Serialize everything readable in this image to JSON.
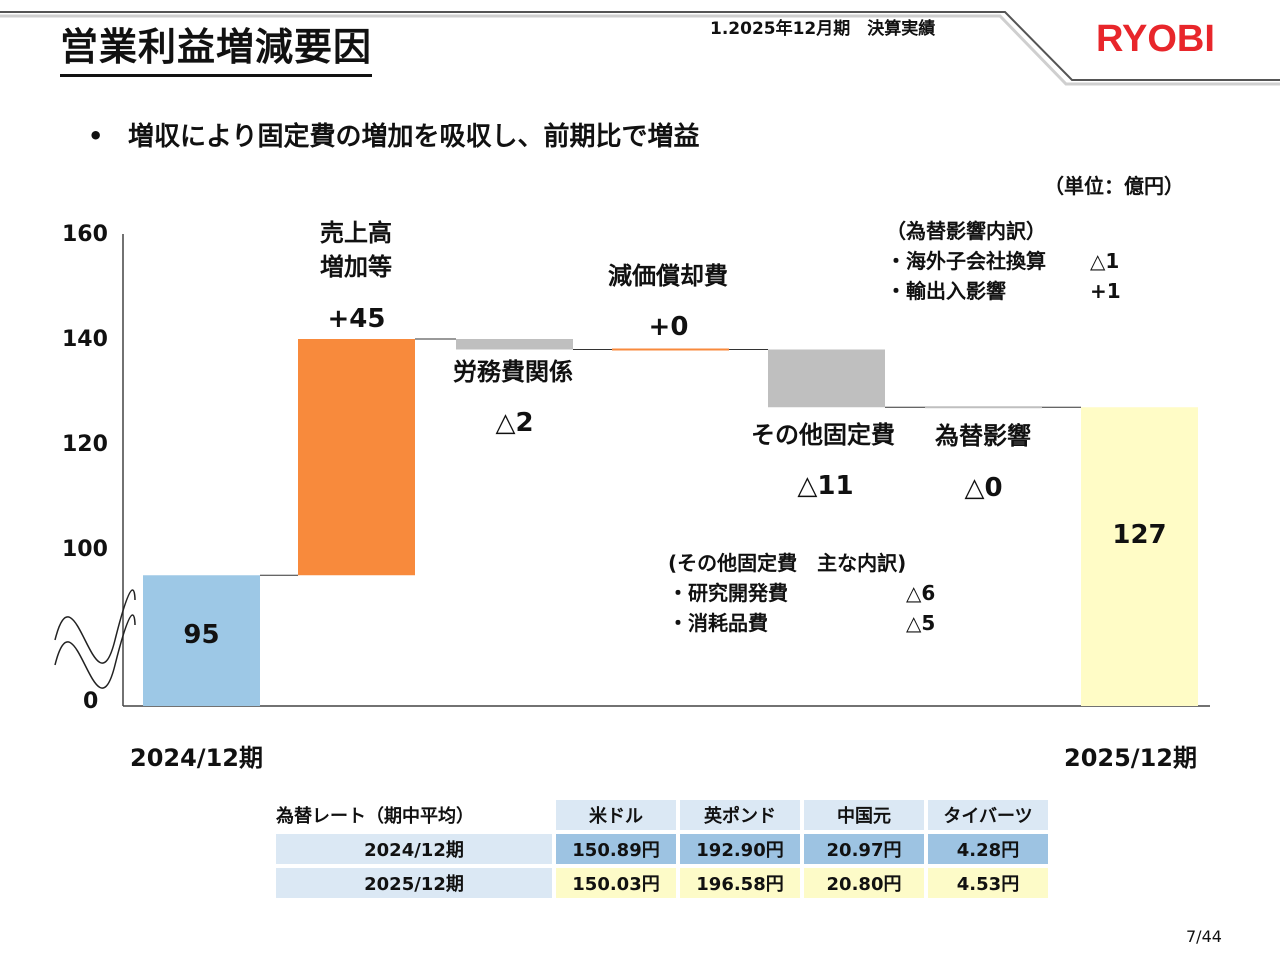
{
  "header": {
    "title": "営業利益増減要因",
    "section": "1.2025年12月期　決算実績",
    "logo": "RYOBI"
  },
  "bullet": "増収により固定費の増加を吸収し、前期比で増益",
  "unit": "（単位：億円）",
  "colors": {
    "start": "#9dc8e6",
    "increase": "#f88a3c",
    "decrease": "#bfbfbf",
    "end": "#fffcc6",
    "logo": "#e8262b"
  },
  "chart_data": {
    "type": "waterfall",
    "y_axis_ticks": [
      "0",
      "100",
      "120",
      "140",
      "160"
    ],
    "y_axis_break": "0–90 (wave break symbol)",
    "ylim": [
      90,
      160
    ],
    "steps": [
      {
        "label": "2024/12期",
        "value_label": "95",
        "kind": "start",
        "value": 95
      },
      {
        "label": "売上高\n増加等",
        "value_label": "+45",
        "kind": "increase",
        "from": 95,
        "to": 140
      },
      {
        "label": "労務費関係",
        "value_label": "△2",
        "kind": "decrease",
        "from": 140,
        "to": 138
      },
      {
        "label": "減価償却費",
        "value_label": "+0",
        "kind": "increase",
        "from": 138,
        "to": 138
      },
      {
        "label": "その他固定費",
        "value_label": "△11",
        "kind": "decrease",
        "from": 138,
        "to": 127
      },
      {
        "label": "為替影響",
        "value_label": "△0",
        "kind": "decrease",
        "from": 127,
        "to": 127
      },
      {
        "label": "2025/12期",
        "value_label": "127",
        "kind": "end",
        "value": 127
      }
    ],
    "period_labels": {
      "start": "2024/12期",
      "end": "2025/12期"
    },
    "notes": {
      "fx": {
        "title": "（為替影響内訳）",
        "items": [
          {
            "label": "・海外子会社換算",
            "value": "△1"
          },
          {
            "label": "・輸出入影響",
            "value": "+1"
          }
        ]
      },
      "other_fixed": {
        "title": "(その他固定費　主な内訳)",
        "items": [
          {
            "label": "・研究開発費",
            "value": "△6"
          },
          {
            "label": "・消耗品費",
            "value": "△5"
          }
        ]
      }
    }
  },
  "fx_table": {
    "caption": "為替レート（期中平均）",
    "currencies": [
      "米ドル",
      "英ポンド",
      "中国元",
      "タイバーツ"
    ],
    "rows": [
      {
        "period": "2024/12期",
        "values": [
          "150.89円",
          "192.90円",
          "20.97円",
          "4.28円"
        ]
      },
      {
        "period": "2025/12期",
        "values": [
          "150.03円",
          "196.58円",
          "20.80円",
          "4.53円"
        ]
      }
    ]
  },
  "page_number": "7/44"
}
